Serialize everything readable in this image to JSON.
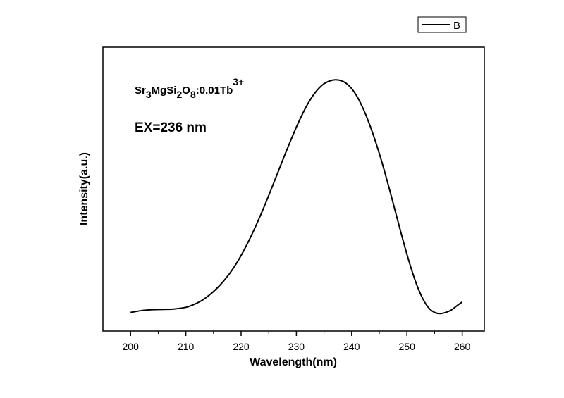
{
  "chart_data": {
    "type": "line",
    "xlabel": "Wavelength(nm)",
    "ylabel": "Intensity(a.u.)",
    "xlim": [
      195,
      264
    ],
    "ylim": [
      -0.08,
      1.14
    ],
    "x_ticks": [
      "200",
      "210",
      "220",
      "230",
      "240",
      "250",
      "260"
    ],
    "y_ticks_labeled": false,
    "grid": false,
    "legend": {
      "placement": "top-right-outside",
      "entries": [
        "B"
      ]
    },
    "annotations": {
      "formula": {
        "parts": [
          {
            "text": "Sr",
            "script": "base"
          },
          {
            "text": "3",
            "script": "sub"
          },
          {
            "text": "MgSi",
            "script": "base"
          },
          {
            "text": "2",
            "script": "sub"
          },
          {
            "text": "O",
            "script": "base"
          },
          {
            "text": "8",
            "script": "sub"
          },
          {
            "text": ":0.01Tb",
            "script": "base"
          },
          {
            "text": "3+",
            "script": "sup"
          }
        ]
      },
      "excitation": "EX=236 nm"
    },
    "series": [
      {
        "name": "B",
        "color": "#000000",
        "x": [
          200,
          202,
          204,
          206,
          208,
          210,
          211,
          212,
          213,
          214,
          215,
          216,
          217,
          218,
          219,
          220,
          221,
          222,
          223,
          224,
          225,
          226,
          227,
          228,
          229,
          230,
          231,
          232,
          233,
          234,
          235,
          236,
          237,
          238,
          239,
          240,
          241,
          242,
          243,
          244,
          245,
          246,
          247,
          248,
          249,
          250,
          251,
          252,
          253,
          254,
          255,
          256,
          257,
          258,
          259,
          260
        ],
        "y": [
          0.0,
          0.008,
          0.012,
          0.013,
          0.015,
          0.022,
          0.03,
          0.04,
          0.053,
          0.07,
          0.09,
          0.113,
          0.14,
          0.17,
          0.205,
          0.245,
          0.29,
          0.338,
          0.39,
          0.445,
          0.503,
          0.563,
          0.623,
          0.683,
          0.741,
          0.797,
          0.848,
          0.894,
          0.932,
          0.962,
          0.983,
          0.995,
          1.0,
          0.997,
          0.985,
          0.962,
          0.927,
          0.88,
          0.823,
          0.757,
          0.683,
          0.602,
          0.515,
          0.425,
          0.336,
          0.25,
          0.172,
          0.105,
          0.053,
          0.018,
          0.0,
          -0.005,
          0.0,
          0.01,
          0.028,
          0.045
        ]
      }
    ]
  }
}
